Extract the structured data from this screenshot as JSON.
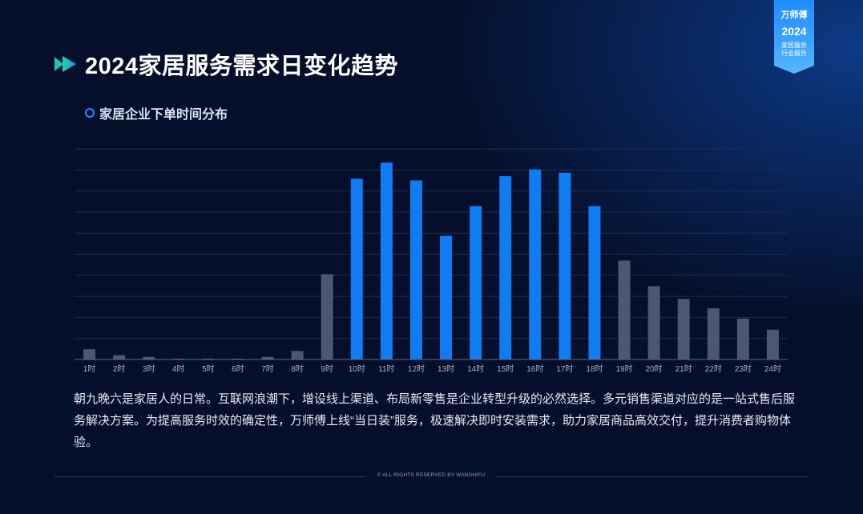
{
  "page": {
    "title": "2024家居服务需求日变化趋势",
    "subtitle": "家居企业下单时间分布",
    "description": "朝九晚六是家居人的日常。互联网浪潮下，增设线上渠道、布局新零售是企业转型升级的必然选择。多元销售渠道对应的是一站式售后服务解决方案。为提高服务时效的确定性，万师傅上线“当日装”服务，极速解决即时安装需求，助力家居商品高效交付，提升消费者购物体验。",
    "footer": "© ALL RIGHTS RESERVED BY WANSHIFU"
  },
  "badge": {
    "brand": "万师傅",
    "year": "2024",
    "line1": "家居服务",
    "line2": "行业报告"
  },
  "colors": {
    "background": "#050f2b",
    "accent": "#1e8bff",
    "bar_highlight": "#0f7cf2",
    "bar_muted": "#4a5873",
    "grid": "#1f2d4c",
    "axis": "#5c6a86",
    "tick_text": "#a9b4c8"
  },
  "icons": {
    "title_icon": "double-chevron-right-icon",
    "bullet_icon": "circle-outline-icon"
  },
  "chart_data": {
    "type": "bar",
    "categories": [
      "1时",
      "2时",
      "3时",
      "4时",
      "5时",
      "6时",
      "7时",
      "8时",
      "9时",
      "10时",
      "11时",
      "12时",
      "13时",
      "14时",
      "15时",
      "16时",
      "17时",
      "18时",
      "19时",
      "20时",
      "21时",
      "22时",
      "23时",
      "24时"
    ],
    "values": [
      12,
      5,
      3,
      1,
      1,
      1,
      3,
      10,
      100,
      212,
      231,
      210,
      145,
      180,
      215,
      223,
      219,
      180,
      116,
      86,
      71,
      60,
      48,
      35
    ],
    "highlight_range": [
      9,
      17
    ],
    "ylim": [
      0,
      247
    ],
    "grid_lines": 10,
    "ytick_labels": false,
    "legend": "none"
  }
}
